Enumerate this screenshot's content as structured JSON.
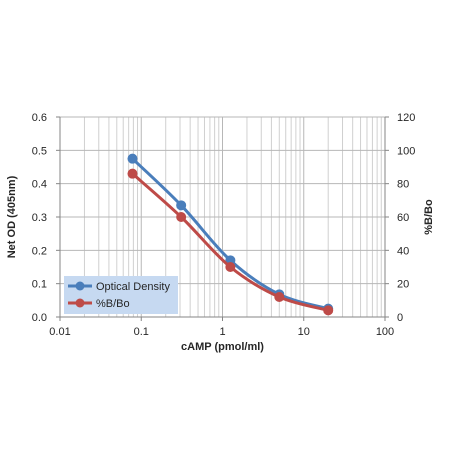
{
  "chart_data": {
    "type": "line",
    "xscale": "log",
    "xlabel": "cAMP (pmol/ml)",
    "ylabel": "Net OD (405nm)",
    "y2label": "%B/Bo",
    "xlim": [
      0.01,
      100
    ],
    "ylim": [
      0,
      0.6
    ],
    "y2lim": [
      0,
      120
    ],
    "x_ticks": [
      "0.01",
      "0.1",
      "1",
      "10",
      "100"
    ],
    "y_ticks": [
      "0.0",
      "0.1",
      "0.2",
      "0.3",
      "0.4",
      "0.5",
      "0.6"
    ],
    "y2_ticks": [
      "0",
      "20",
      "40",
      "60",
      "80",
      "100",
      "120"
    ],
    "grid": true,
    "legend": "bottom-left",
    "x": [
      0.078,
      0.31,
      1.25,
      5,
      20
    ],
    "series": [
      {
        "name": "Optical Density",
        "axis": "left",
        "color": "#4A7EBB",
        "values": [
          0.475,
          0.335,
          0.17,
          0.068,
          0.025
        ]
      },
      {
        "name": "%B/Bo",
        "axis": "right",
        "color": "#BE4B48",
        "values": [
          86,
          60,
          30,
          12,
          4
        ]
      }
    ],
    "legend_bg": "#C6D9F1"
  }
}
